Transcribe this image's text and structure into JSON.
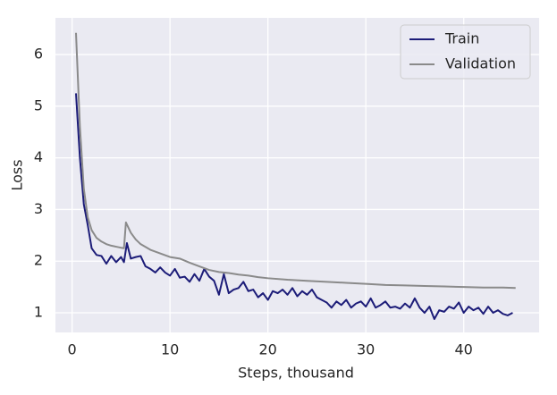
{
  "chart_data": {
    "type": "line",
    "xlabel": "Steps, thousand",
    "ylabel": "Loss",
    "xlim": [
      -1.7,
      47.7
    ],
    "ylim": [
      0.62,
      6.71
    ],
    "xticks": [
      0,
      10,
      20,
      30,
      40
    ],
    "yticks": [
      1,
      2,
      3,
      4,
      5,
      6
    ],
    "grid": true,
    "legend": "upper right",
    "series": [
      {
        "name": "Train",
        "color": "#1c1c78",
        "x": [
          0.4,
          0.8,
          1.2,
          1.6,
          2.0,
          2.5,
          3.0,
          3.5,
          4.0,
          4.5,
          5.0,
          5.3,
          5.6,
          6.0,
          6.5,
          7.0,
          7.5,
          8.0,
          8.5,
          9.0,
          9.5,
          10.0,
          10.5,
          11.0,
          11.5,
          12.0,
          12.5,
          13.0,
          13.5,
          14.0,
          14.5,
          15.0,
          15.5,
          16.0,
          16.5,
          17.0,
          17.5,
          18.0,
          18.5,
          19.0,
          19.5,
          20.0,
          20.5,
          21.0,
          21.5,
          22.0,
          22.5,
          23.0,
          23.5,
          24.0,
          24.5,
          25.0,
          25.5,
          26.0,
          26.5,
          27.0,
          27.5,
          28.0,
          28.5,
          29.0,
          29.5,
          30.0,
          30.5,
          31.0,
          31.5,
          32.0,
          32.5,
          33.0,
          33.5,
          34.0,
          34.5,
          35.0,
          35.5,
          36.0,
          36.5,
          37.0,
          37.5,
          38.0,
          38.5,
          39.0,
          39.5,
          40.0,
          40.5,
          41.0,
          41.5,
          42.0,
          42.5,
          43.0,
          43.5,
          44.0,
          44.5,
          45.0
        ],
        "values": [
          5.25,
          4.0,
          3.1,
          2.7,
          2.25,
          2.12,
          2.1,
          1.95,
          2.1,
          1.98,
          2.08,
          1.98,
          2.35,
          2.05,
          2.08,
          2.1,
          1.9,
          1.85,
          1.78,
          1.88,
          1.78,
          1.72,
          1.85,
          1.68,
          1.7,
          1.6,
          1.75,
          1.62,
          1.85,
          1.7,
          1.62,
          1.35,
          1.75,
          1.38,
          1.45,
          1.48,
          1.6,
          1.42,
          1.45,
          1.3,
          1.38,
          1.25,
          1.42,
          1.38,
          1.45,
          1.35,
          1.48,
          1.32,
          1.42,
          1.35,
          1.45,
          1.3,
          1.25,
          1.2,
          1.1,
          1.22,
          1.15,
          1.25,
          1.1,
          1.18,
          1.22,
          1.12,
          1.28,
          1.1,
          1.15,
          1.22,
          1.1,
          1.12,
          1.08,
          1.18,
          1.1,
          1.28,
          1.1,
          1.0,
          1.12,
          0.88,
          1.05,
          1.02,
          1.12,
          1.08,
          1.2,
          1.0,
          1.12,
          1.05,
          1.1,
          0.98,
          1.12,
          1.0,
          1.05,
          0.98,
          0.95,
          1.0
        ]
      },
      {
        "name": "Validation",
        "color": "#8a8a8a",
        "x": [
          0.4,
          0.8,
          1.2,
          1.6,
          2.0,
          2.5,
          3.0,
          3.5,
          4.0,
          4.5,
          5.0,
          5.3,
          5.5,
          6.0,
          6.5,
          7.0,
          8.0,
          9.0,
          10.0,
          11.0,
          12.0,
          13.0,
          14.0,
          15.0,
          16.0,
          17.0,
          18.0,
          19.0,
          20.0,
          22.0,
          24.0,
          26.0,
          28.0,
          30.0,
          32.0,
          34.0,
          36.0,
          38.0,
          40.0,
          42.0,
          44.0,
          45.3
        ],
        "values": [
          6.42,
          4.6,
          3.4,
          2.85,
          2.6,
          2.45,
          2.38,
          2.33,
          2.3,
          2.28,
          2.26,
          2.25,
          2.75,
          2.55,
          2.42,
          2.33,
          2.22,
          2.15,
          2.08,
          2.05,
          1.97,
          1.9,
          1.83,
          1.79,
          1.77,
          1.74,
          1.72,
          1.69,
          1.67,
          1.64,
          1.62,
          1.6,
          1.58,
          1.56,
          1.54,
          1.53,
          1.52,
          1.51,
          1.5,
          1.49,
          1.49,
          1.48
        ]
      }
    ]
  }
}
